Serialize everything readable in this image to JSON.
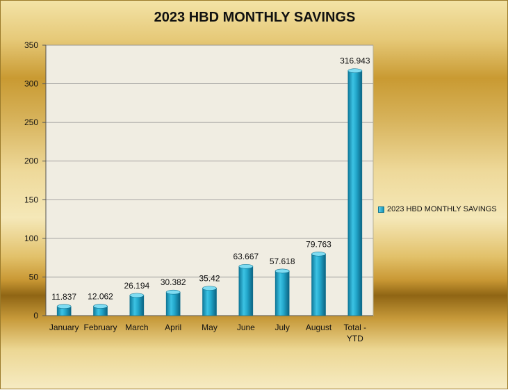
{
  "chart_data": {
    "type": "bar",
    "title": "2023 HBD MONTHLY SAVINGS",
    "categories": [
      "January",
      "February",
      "March",
      "April",
      "May",
      "June",
      "July",
      "August",
      "Total - YTD"
    ],
    "series": [
      {
        "name": "2023 HBD MONTHLY SAVINGS",
        "values": [
          11.837,
          12.062,
          26.194,
          30.382,
          35.42,
          63.667,
          57.618,
          79.763,
          316.943
        ],
        "labels": [
          "11.837",
          "12.062",
          "26.194",
          "30.382",
          "35.42",
          "63.667",
          "57.618",
          "79.763",
          "316.943"
        ]
      }
    ],
    "ylim": [
      0,
      350
    ],
    "yticks": [
      0,
      50,
      100,
      150,
      200,
      250,
      300,
      350
    ],
    "grid": true,
    "legend": "right",
    "colors": {
      "bar": "#1fa3c7",
      "bar_dark": "#0d6f8e",
      "plot_bg": "#f0ede2",
      "grid": "#8c8c8c"
    }
  }
}
